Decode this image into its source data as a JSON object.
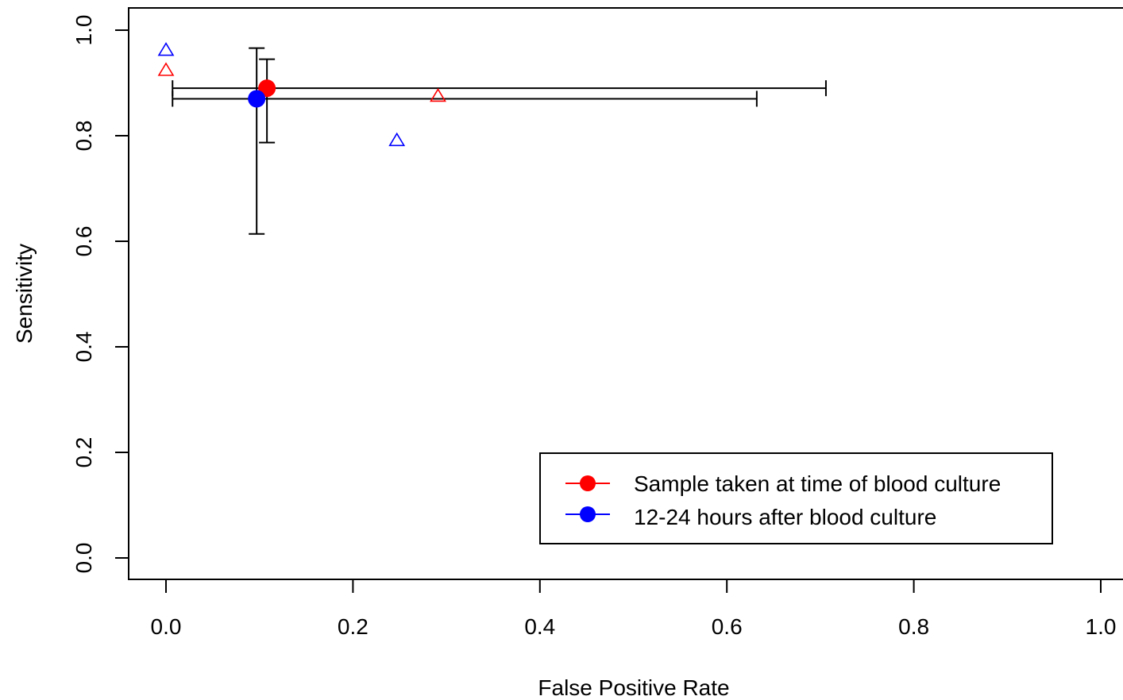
{
  "chart_data": {
    "type": "scatter",
    "title": "",
    "xlabel": "False Positive Rate",
    "ylabel": "Sensitivity",
    "xlim": [
      0,
      1
    ],
    "ylim": [
      0,
      1
    ],
    "xticks": [
      "0.0",
      "0.2",
      "0.4",
      "0.6",
      "0.8",
      "1.0"
    ],
    "yticks": [
      "0.0",
      "0.2",
      "0.4",
      "0.6",
      "0.8",
      "1.0"
    ],
    "grid": false,
    "legend_position": "bottom-right",
    "series": [
      {
        "name": "Sample taken at time of blood culture",
        "color": "#ff0000",
        "summary_point": {
          "x": 0.108,
          "y": 0.89
        },
        "error_x": [
          0.007,
          0.706
        ],
        "error_y": [
          0.787,
          0.945
        ],
        "study_points": [
          {
            "x": 0.0,
            "y": 0.925
          },
          {
            "x": 0.291,
            "y": 0.876
          }
        ]
      },
      {
        "name": "12-24 hours after blood culture",
        "color": "#0000ff",
        "summary_point": {
          "x": 0.097,
          "y": 0.87
        },
        "error_x": [
          0.007,
          0.632
        ],
        "error_y": [
          0.614,
          0.966
        ],
        "study_points": [
          {
            "x": 0.0,
            "y": 0.963
          },
          {
            "x": 0.247,
            "y": 0.792
          }
        ]
      }
    ]
  }
}
